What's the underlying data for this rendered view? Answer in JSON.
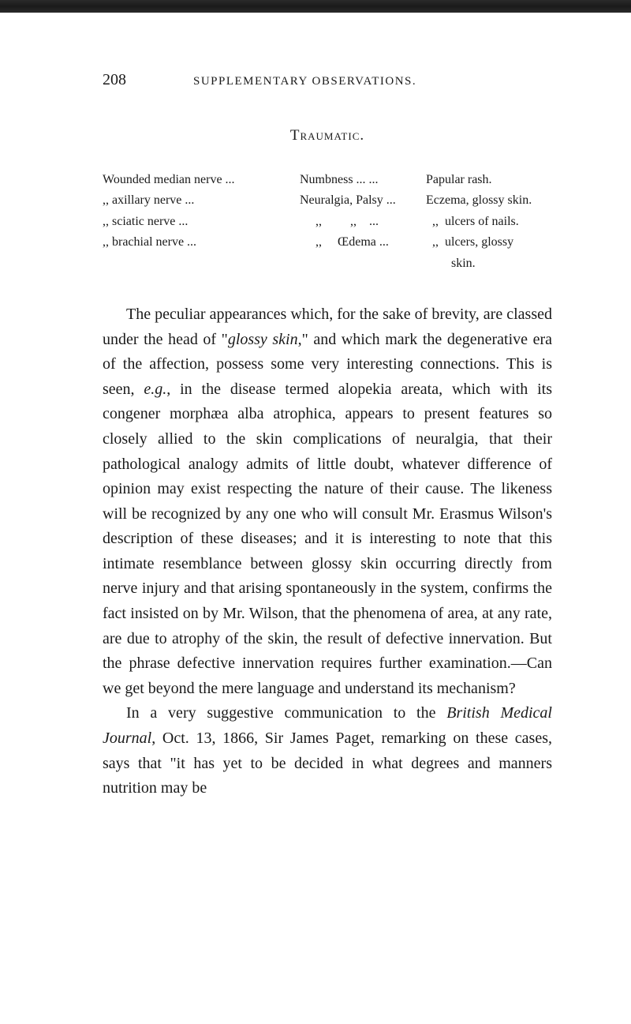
{
  "page_number": "208",
  "header_title": "SUPPLEMENTARY OBSERVATIONS.",
  "section_title": "Traumatic.",
  "table": {
    "rows": [
      {
        "col1": "Wounded median nerve ...",
        "col2": "Numbness ...   ...",
        "col3": "Papular rash."
      },
      {
        "col1_prefix": "      ,,",
        "col1_rest": "     axillary nerve ...",
        "col2": "Neuralgia, Palsy ...",
        "col3": "Eczema, glossy skin."
      },
      {
        "col1_prefix": "      ,,",
        "col1_rest": "     sciatic nerve ...",
        "col2": "     ,,         ,,    ...",
        "col3": "  ,,  ulcers of nails."
      },
      {
        "col1_prefix": "      ,,",
        "col1_rest": "     brachial nerve ...",
        "col2": "     ,,     Œdema ...",
        "col3": "  ,,  ulcers, glossy"
      },
      {
        "col1": "",
        "col2": "",
        "col3": "        skin."
      }
    ]
  },
  "paragraphs": {
    "p1_part1": "The peculiar appearances which, for the sake of brevity, are classed under the head of \"",
    "p1_italic1": "glossy skin",
    "p1_part2": ",\" and which mark the degenerative era of the affection, possess some very interesting connections. This is seen, ",
    "p1_italic2": "e.g.",
    "p1_part3": ", in the disease termed alopekia areata, which with its congener morphæa alba atrophica, appears to present features so closely allied to the skin complications of neuralgia, that their pathological analogy admits of little doubt, whatever difference of opinion may exist respecting the nature of their cause. The likeness will be recognized by any one who will consult Mr. Erasmus Wilson's description of these diseases; and it is interesting to note that this intimate resemblance between glossy skin occurring directly from nerve injury and that arising spontaneously in the system, confirms the fact insisted on by Mr. Wilson, that the phenomena of area, at any rate, are due to atrophy of the skin, the result of defective innervation. But the phrase defective innervation requires further examination.—Can we get beyond the mere language and understand its mechanism?",
    "p2_part1": "In a very suggestive communication to the ",
    "p2_italic1": "British Medical Journal",
    "p2_part2": ", Oct. 13, 1866, Sir James Paget, remarking on these cases, says that \"it has yet to be decided in what degrees and manners nutrition may be"
  }
}
